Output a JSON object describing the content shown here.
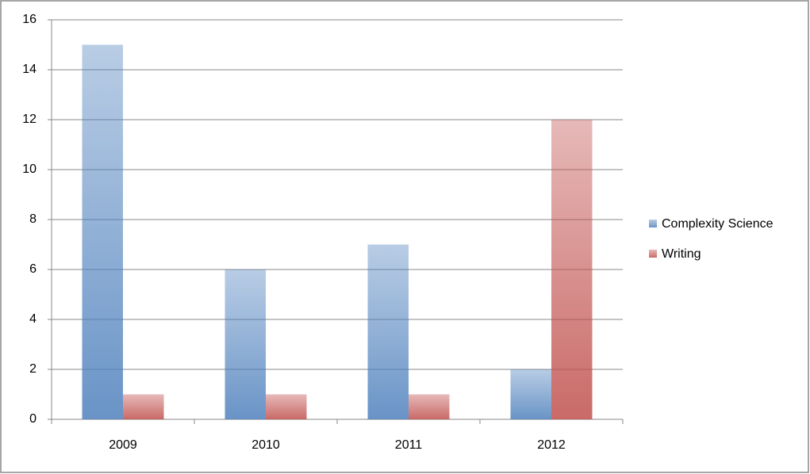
{
  "chart_data": {
    "type": "bar",
    "categories": [
      "2009",
      "2010",
      "2011",
      "2012"
    ],
    "series": [
      {
        "name": "Complexity Science",
        "color": "#4f81bd",
        "values": [
          15,
          6,
          7,
          2
        ]
      },
      {
        "name": "Writing",
        "color": "#c0504d",
        "values": [
          1,
          1,
          1,
          12
        ]
      }
    ],
    "ylim": [
      0,
      16
    ],
    "yticks": [
      0,
      2,
      4,
      6,
      8,
      10,
      12,
      14,
      16
    ],
    "grid": true,
    "legend": "right"
  }
}
